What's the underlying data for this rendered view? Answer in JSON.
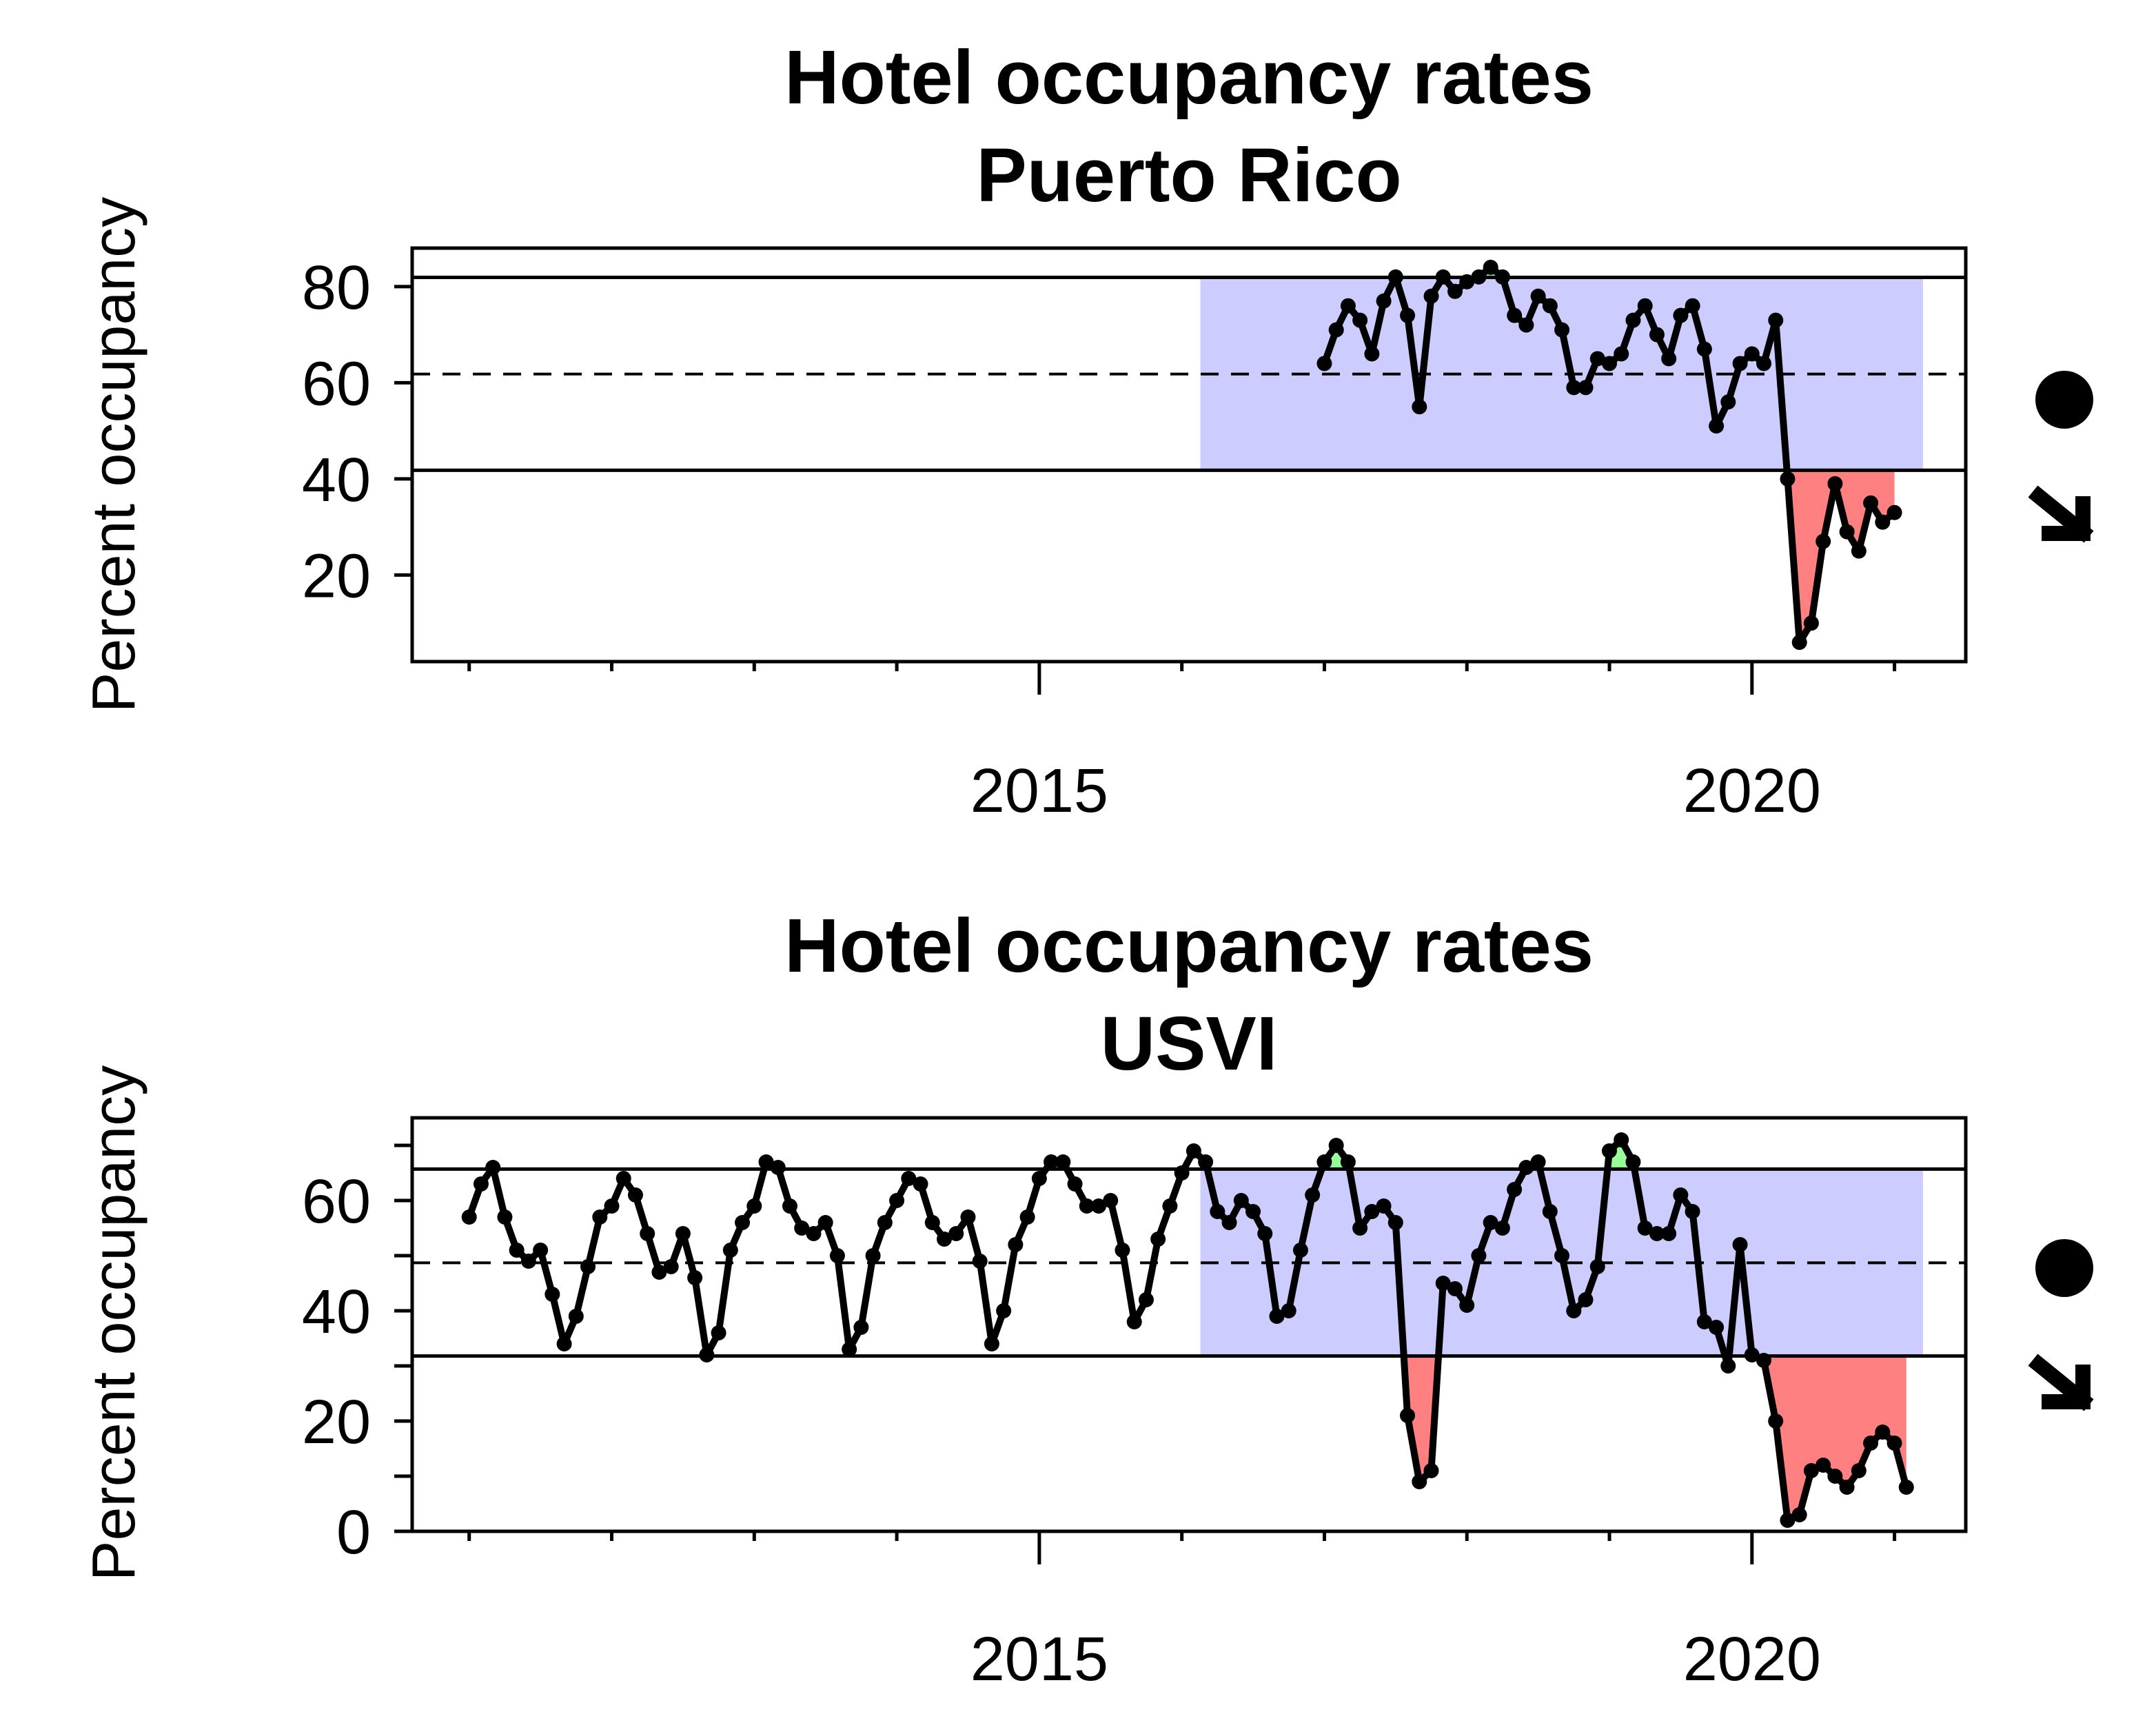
{
  "chart_data": [
    {
      "type": "line",
      "title": "Hotel occupancy rates",
      "subtitle": "Puerto Rico",
      "ylabel": "Percent occupancy",
      "xlabel": "",
      "xlim": [
        2010.6,
        2021.5
      ],
      "ylim": [
        2,
        88
      ],
      "x_ticks": [
        2011,
        2012,
        2013,
        2014,
        2015,
        2016,
        2017,
        2018,
        2019,
        2020,
        2021
      ],
      "x_tick_labels": [
        {
          "value": 2015,
          "label": "2015"
        },
        {
          "value": 2020,
          "label": "2020"
        }
      ],
      "y_ticks": [
        20,
        40,
        60,
        80
      ],
      "y_tick_labels": [
        "20",
        "40",
        "60",
        "80"
      ],
      "mean": 61.8,
      "upper_bound": 81.9,
      "lower_bound": 41.8,
      "shaded_period": [
        2016.13,
        2021.2
      ],
      "trend_status": {
        "level": "within",
        "trend": "decreasing"
      },
      "series": [
        {
          "x_start": 2017.0,
          "x_step": 0.08333,
          "values": [
            64,
            71,
            76,
            73,
            66,
            77,
            82,
            74,
            55,
            78,
            82,
            79,
            81,
            82,
            84,
            82,
            74,
            72,
            78,
            76,
            71,
            59,
            59,
            65,
            64,
            66,
            73,
            76,
            70,
            65,
            74,
            76,
            67,
            51,
            56,
            64,
            66,
            64,
            73,
            40,
            6,
            10,
            27,
            39,
            29,
            25,
            35,
            31,
            33
          ]
        }
      ],
      "colors": {
        "line": "#000000",
        "band": "#CCCCFF",
        "above": "#99FF99",
        "below": "#FF8080"
      }
    },
    {
      "type": "line",
      "title": "Hotel occupancy rates",
      "subtitle": "USVI",
      "ylabel": "Percent occupancy",
      "xlabel": "",
      "xlim": [
        2010.6,
        2021.5
      ],
      "ylim": [
        0,
        75
      ],
      "x_ticks": [
        2011,
        2012,
        2013,
        2014,
        2015,
        2016,
        2017,
        2018,
        2019,
        2020,
        2021
      ],
      "x_tick_labels": [
        {
          "value": 2015,
          "label": "2015"
        },
        {
          "value": 2020,
          "label": "2020"
        }
      ],
      "y_ticks": [
        0,
        10,
        20,
        30,
        40,
        50,
        60,
        70
      ],
      "y_tick_labels": [
        "0",
        "20",
        "40",
        "60"
      ],
      "mean": 48.7,
      "upper_bound": 65.7,
      "lower_bound": 31.8,
      "shaded_period": [
        2016.13,
        2021.2
      ],
      "trend_status": {
        "level": "within",
        "trend": "decreasing"
      },
      "series": [
        {
          "x_start": 2011.0,
          "x_step": 0.08333,
          "values": [
            57,
            63,
            66,
            57,
            51,
            49,
            51,
            43,
            34,
            39,
            48,
            57,
            59,
            64,
            61,
            54,
            47,
            48,
            54,
            46,
            32,
            36,
            51,
            56,
            59,
            67,
            66,
            59,
            55,
            54,
            56,
            50,
            33,
            37,
            50,
            56,
            60,
            64,
            63,
            56,
            53,
            54,
            57,
            49,
            34,
            40,
            52,
            57,
            64,
            67,
            67,
            63,
            59,
            59,
            60,
            51,
            38,
            42,
            53,
            59,
            65,
            69,
            67,
            58,
            56,
            60,
            58,
            54,
            39,
            40,
            51,
            61,
            67,
            70,
            67,
            55,
            58,
            59,
            56,
            21,
            9,
            11,
            45,
            44,
            41,
            50,
            56,
            55,
            62,
            66,
            67,
            58,
            50,
            40,
            42,
            48,
            69,
            71,
            67,
            55,
            54,
            54,
            61,
            58,
            38,
            37,
            30,
            52,
            32,
            31,
            20,
            2,
            3,
            11,
            12,
            10,
            8,
            11,
            16,
            18,
            16,
            8
          ]
        }
      ],
      "colors": {
        "line": "#000000",
        "band": "#CCCCFF",
        "above": "#99FF99",
        "below": "#FF8080"
      }
    }
  ]
}
